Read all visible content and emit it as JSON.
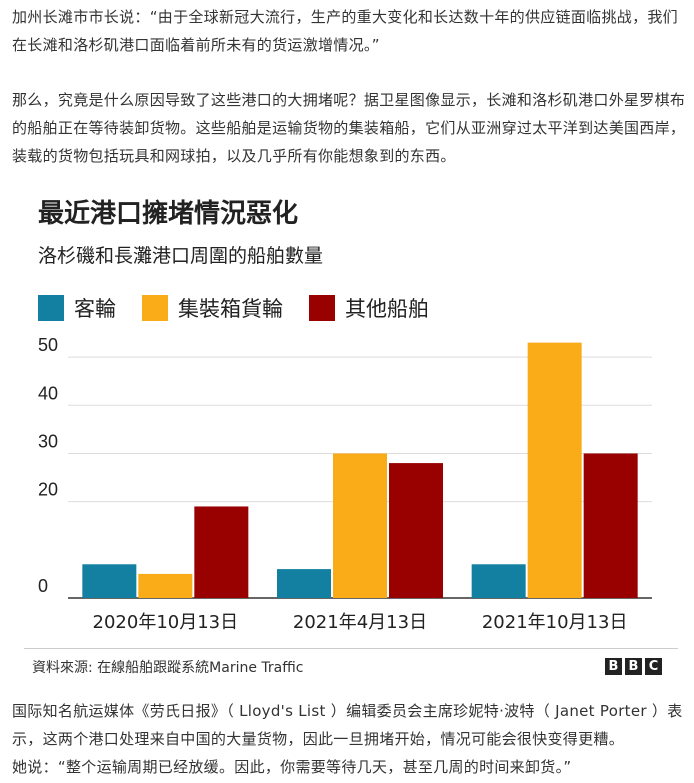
{
  "article": {
    "p1": "加州长滩市市长说：“由于全球新冠大流行，生产的重大变化和长达数十年的供应链面临挑战，我们在长滩和洛杉矶港口面临着前所未有的货运激增情况。”",
    "p2": "那么，究竟是什么原因导致了这些港口的大拥堵呢？据卫星图像显示，长滩和洛杉矶港口外星罗棋布的船舶正在等待装卸货物。这些船舶是运输货物的集装箱船，它们从亚洲穿过太平洋到达美国西岸，装载的货物包括玩具和网球拍，以及几乎所有你能想象到的东西。",
    "p4": "国际知名航运媒体《劳氏日报》（ Lloyd's List ）编辑委员会主席珍妮特·波特（ Janet Porter ）表示，这两个港口处理来自中国的大量货物，因此一旦拥堵开始，情况可能会很快变得更糟。",
    "p5": "她说：“整个运输周期已经放缓。因此，你需要等待几天，甚至几周的时间来卸货。”"
  },
  "figure": {
    "source": "資料來源: 在線船舶跟蹤系統Marine Traffic",
    "logo_letters": [
      "B",
      "B",
      "C"
    ]
  },
  "chart_data": {
    "type": "bar",
    "title": "最近港口擁堵情況惡化",
    "subtitle": "洛杉磯和長灘港口周圍的船舶數量",
    "categories": [
      "2020年10月13日",
      "2021年4月13日",
      "2021年10月13日"
    ],
    "series": [
      {
        "name": "客輪",
        "color": "#1380A1",
        "values": [
          7,
          6,
          7
        ]
      },
      {
        "name": "集裝箱貨輪",
        "color": "#FAAB18",
        "values": [
          5,
          30,
          53
        ]
      },
      {
        "name": "其他船舶",
        "color": "#990000",
        "values": [
          19,
          28,
          30
        ]
      }
    ],
    "yticks": [
      0,
      20,
      30,
      40,
      50
    ],
    "ylim": [
      0,
      55
    ],
    "grid": true,
    "legend": "top-left"
  }
}
